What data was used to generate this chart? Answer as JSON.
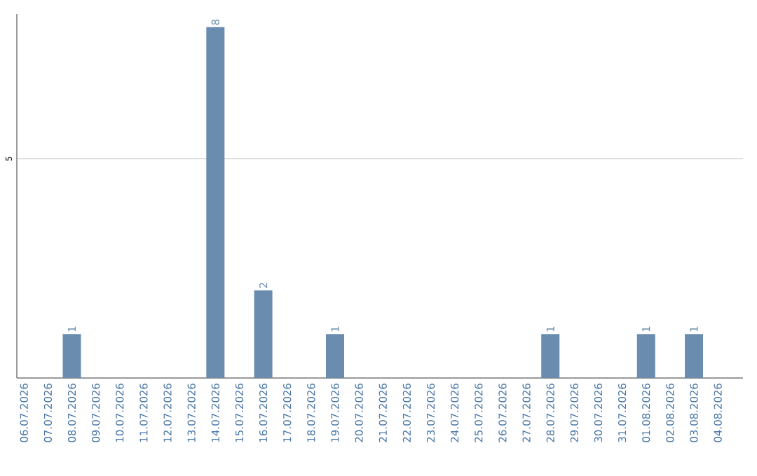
{
  "chart_data": {
    "type": "bar",
    "categories": [
      "06.07.2026",
      "07.07.2026",
      "08.07.2026",
      "09.07.2026",
      "10.07.2026",
      "11.07.2026",
      "12.07.2026",
      "13.07.2026",
      "14.07.2026",
      "15.07.2026",
      "16.07.2026",
      "17.07.2026",
      "18.07.2026",
      "19.07.2026",
      "20.07.2026",
      "21.07.2026",
      "22.07.2026",
      "23.07.2026",
      "24.07.2026",
      "25.07.2026",
      "26.07.2026",
      "27.07.2026",
      "28.07.2026",
      "29.07.2026",
      "30.07.2026",
      "31.07.2026",
      "01.08.2026",
      "02.08.2026",
      "03.08.2026",
      "04.08.2026"
    ],
    "values": [
      null,
      null,
      1,
      null,
      null,
      null,
      null,
      null,
      8,
      null,
      2,
      null,
      null,
      1,
      null,
      null,
      null,
      null,
      null,
      null,
      null,
      null,
      1,
      null,
      null,
      null,
      1,
      null,
      1,
      null
    ],
    "color": "#6a8caf",
    "ylim": [
      0,
      8.3
    ],
    "yticks": [
      5
    ],
    "grid": "y",
    "data_labels": true
  }
}
